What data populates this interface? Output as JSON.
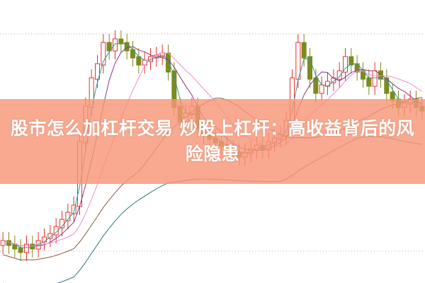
{
  "article": {
    "title": "股市怎么加杠杆交易 炒股上杠杆：高收益背后的风险隐患"
  },
  "colors": {
    "up": "#e8302a",
    "down": "#7d8a1c",
    "banner": "#f6a084",
    "ma_short": "#2a9aa0",
    "ma_mid": "#8a3a8a",
    "ma_long": "#f08ad0",
    "ma_xlong": "#8a5a3a",
    "ma_trend": "#2a7a7a"
  }
}
